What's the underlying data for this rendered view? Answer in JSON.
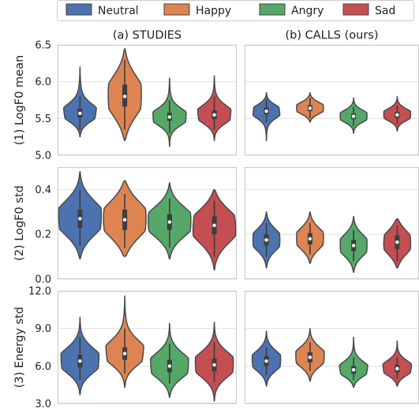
{
  "chart_data": {
    "type": "violin",
    "legend": {
      "placement": "top",
      "entries": [
        {
          "name": "Neutral",
          "color": "#4C72B0"
        },
        {
          "name": "Happy",
          "color": "#DD8452"
        },
        {
          "name": "Angry",
          "color": "#55A868"
        },
        {
          "name": "Sad",
          "color": "#C44E52"
        }
      ]
    },
    "columns": [
      "(a) STUDIES",
      "(b) CALLS (ours)"
    ],
    "categories": [
      "Neutral",
      "Happy",
      "Angry",
      "Sad"
    ],
    "grid": true,
    "rows": [
      {
        "ylabel": "(1) LogF0 mean",
        "ylim": [
          5.0,
          6.5
        ],
        "yticks": [
          "5.0",
          "5.5",
          "6.0",
          "6.5"
        ],
        "panels": [
          {
            "column": "(a) STUDIES",
            "violins": [
              {
                "category": "Neutral",
                "median": 5.57,
                "q1": 5.51,
                "q3": 5.63,
                "whisker_low": 5.35,
                "whisker_high": 5.8,
                "min": 5.25,
                "max": 6.2
              },
              {
                "category": "Happy",
                "median": 5.8,
                "q1": 5.66,
                "q3": 5.96,
                "whisker_low": 5.35,
                "whisker_high": 6.3,
                "min": 5.2,
                "max": 6.45
              },
              {
                "category": "Angry",
                "median": 5.52,
                "q1": 5.47,
                "q3": 5.58,
                "whisker_low": 5.3,
                "whisker_high": 5.75,
                "min": 5.12,
                "max": 6.05
              },
              {
                "category": "Sad",
                "median": 5.55,
                "q1": 5.49,
                "q3": 5.61,
                "whisker_low": 5.35,
                "whisker_high": 5.8,
                "min": 5.2,
                "max": 6.08
              }
            ]
          },
          {
            "column": "(b) CALLS (ours)",
            "violins": [
              {
                "category": "Neutral",
                "median": 5.6,
                "q1": 5.56,
                "q3": 5.65,
                "whisker_low": 5.45,
                "whisker_high": 5.76,
                "min": 5.2,
                "max": 5.85
              },
              {
                "category": "Happy",
                "median": 5.64,
                "q1": 5.6,
                "q3": 5.68,
                "whisker_low": 5.5,
                "whisker_high": 5.78,
                "min": 5.45,
                "max": 5.85
              },
              {
                "category": "Angry",
                "median": 5.53,
                "q1": 5.49,
                "q3": 5.57,
                "whisker_low": 5.4,
                "whisker_high": 5.66,
                "min": 5.3,
                "max": 5.78
              },
              {
                "category": "Sad",
                "median": 5.55,
                "q1": 5.51,
                "q3": 5.59,
                "whisker_low": 5.42,
                "whisker_high": 5.68,
                "min": 5.33,
                "max": 5.8
              }
            ]
          }
        ]
      },
      {
        "ylabel": "(2) LogF0 std",
        "ylim": [
          0.0,
          0.5
        ],
        "yticks": [
          "0.0",
          "0.2",
          "0.4"
        ],
        "panels": [
          {
            "column": "(a) STUDIES",
            "violins": [
              {
                "category": "Neutral",
                "median": 0.27,
                "q1": 0.23,
                "q3": 0.31,
                "whisker_low": 0.15,
                "whisker_high": 0.4,
                "min": 0.09,
                "max": 0.48
              },
              {
                "category": "Happy",
                "median": 0.265,
                "q1": 0.22,
                "q3": 0.31,
                "whisker_low": 0.14,
                "whisker_high": 0.38,
                "min": 0.1,
                "max": 0.44
              },
              {
                "category": "Angry",
                "median": 0.255,
                "q1": 0.22,
                "q3": 0.29,
                "whisker_low": 0.14,
                "whisker_high": 0.36,
                "min": 0.09,
                "max": 0.43
              },
              {
                "category": "Sad",
                "median": 0.24,
                "q1": 0.2,
                "q3": 0.28,
                "whisker_low": 0.1,
                "whisker_high": 0.35,
                "min": 0.04,
                "max": 0.4
              }
            ]
          },
          {
            "column": "(b) CALLS (ours)",
            "violins": [
              {
                "category": "Neutral",
                "median": 0.175,
                "q1": 0.15,
                "q3": 0.2,
                "whisker_low": 0.1,
                "whisker_high": 0.25,
                "min": 0.05,
                "max": 0.3
              },
              {
                "category": "Happy",
                "median": 0.18,
                "q1": 0.155,
                "q3": 0.205,
                "whisker_low": 0.11,
                "whisker_high": 0.25,
                "min": 0.07,
                "max": 0.3
              },
              {
                "category": "Angry",
                "median": 0.15,
                "q1": 0.125,
                "q3": 0.175,
                "whisker_low": 0.08,
                "whisker_high": 0.22,
                "min": 0.03,
                "max": 0.28
              },
              {
                "category": "Sad",
                "median": 0.165,
                "q1": 0.135,
                "q3": 0.195,
                "whisker_low": 0.08,
                "whisker_high": 0.24,
                "min": 0.05,
                "max": 0.27
              }
            ]
          }
        ]
      },
      {
        "ylabel": "(3) Energy std",
        "ylim": [
          3.0,
          12.0
        ],
        "yticks": [
          "3.0",
          "6.0",
          "9.0",
          "12.0"
        ],
        "panels": [
          {
            "column": "(a) STUDIES",
            "violins": [
              {
                "category": "Neutral",
                "median": 6.4,
                "q1": 5.9,
                "q3": 6.9,
                "whisker_low": 4.9,
                "whisker_high": 8.3,
                "min": 3.7,
                "max": 9.9
              },
              {
                "category": "Happy",
                "median": 7.0,
                "q1": 6.5,
                "q3": 7.5,
                "whisker_low": 5.4,
                "whisker_high": 9.0,
                "min": 4.3,
                "max": 11.6
              },
              {
                "category": "Angry",
                "median": 6.0,
                "q1": 5.5,
                "q3": 6.5,
                "whisker_low": 4.6,
                "whisker_high": 7.8,
                "min": 3.5,
                "max": 9.4
              },
              {
                "category": "Sad",
                "median": 6.1,
                "q1": 5.6,
                "q3": 6.6,
                "whisker_low": 4.7,
                "whisker_high": 7.9,
                "min": 3.2,
                "max": 9.5
              }
            ]
          },
          {
            "column": "(b) CALLS (ours)",
            "violins": [
              {
                "category": "Neutral",
                "median": 6.4,
                "q1": 6.0,
                "q3": 6.8,
                "whisker_low": 5.3,
                "whisker_high": 7.5,
                "min": 4.4,
                "max": 8.8
              },
              {
                "category": "Happy",
                "median": 6.7,
                "q1": 6.3,
                "q3": 7.1,
                "whisker_low": 5.6,
                "whisker_high": 7.9,
                "min": 4.8,
                "max": 9.0
              },
              {
                "category": "Angry",
                "median": 5.7,
                "q1": 5.4,
                "q3": 6.0,
                "whisker_low": 4.9,
                "whisker_high": 6.7,
                "min": 4.3,
                "max": 8.3
              },
              {
                "category": "Sad",
                "median": 5.8,
                "q1": 5.5,
                "q3": 6.1,
                "whisker_low": 5.0,
                "whisker_high": 6.7,
                "min": 4.4,
                "max": 8.0
              }
            ]
          }
        ]
      }
    ]
  }
}
